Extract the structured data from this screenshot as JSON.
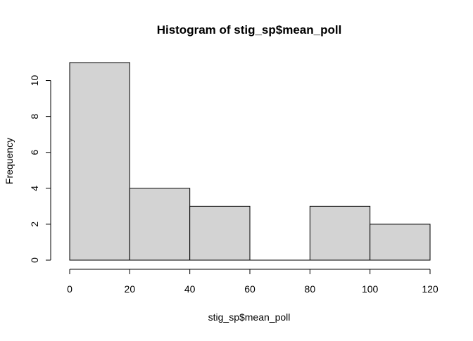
{
  "chart_data": {
    "type": "bar",
    "title": "Histogram of stig_sp$mean_poll",
    "xlabel": "stig_sp$mean_poll",
    "ylabel": "Frequency",
    "bins": [
      {
        "start": 0,
        "end": 20,
        "count": 11
      },
      {
        "start": 20,
        "end": 40,
        "count": 4
      },
      {
        "start": 40,
        "end": 60,
        "count": 3
      },
      {
        "start": 60,
        "end": 80,
        "count": 0
      },
      {
        "start": 80,
        "end": 100,
        "count": 3
      },
      {
        "start": 100,
        "end": 120,
        "count": 2
      }
    ],
    "xlim": [
      0,
      120
    ],
    "ylim": [
      0,
      10
    ],
    "x_ticks": [
      0,
      20,
      40,
      60,
      80,
      100,
      120
    ],
    "y_ticks": [
      0,
      2,
      4,
      6,
      8,
      10
    ],
    "bar_color": "#d3d3d3",
    "grid": false,
    "legend": "none"
  }
}
